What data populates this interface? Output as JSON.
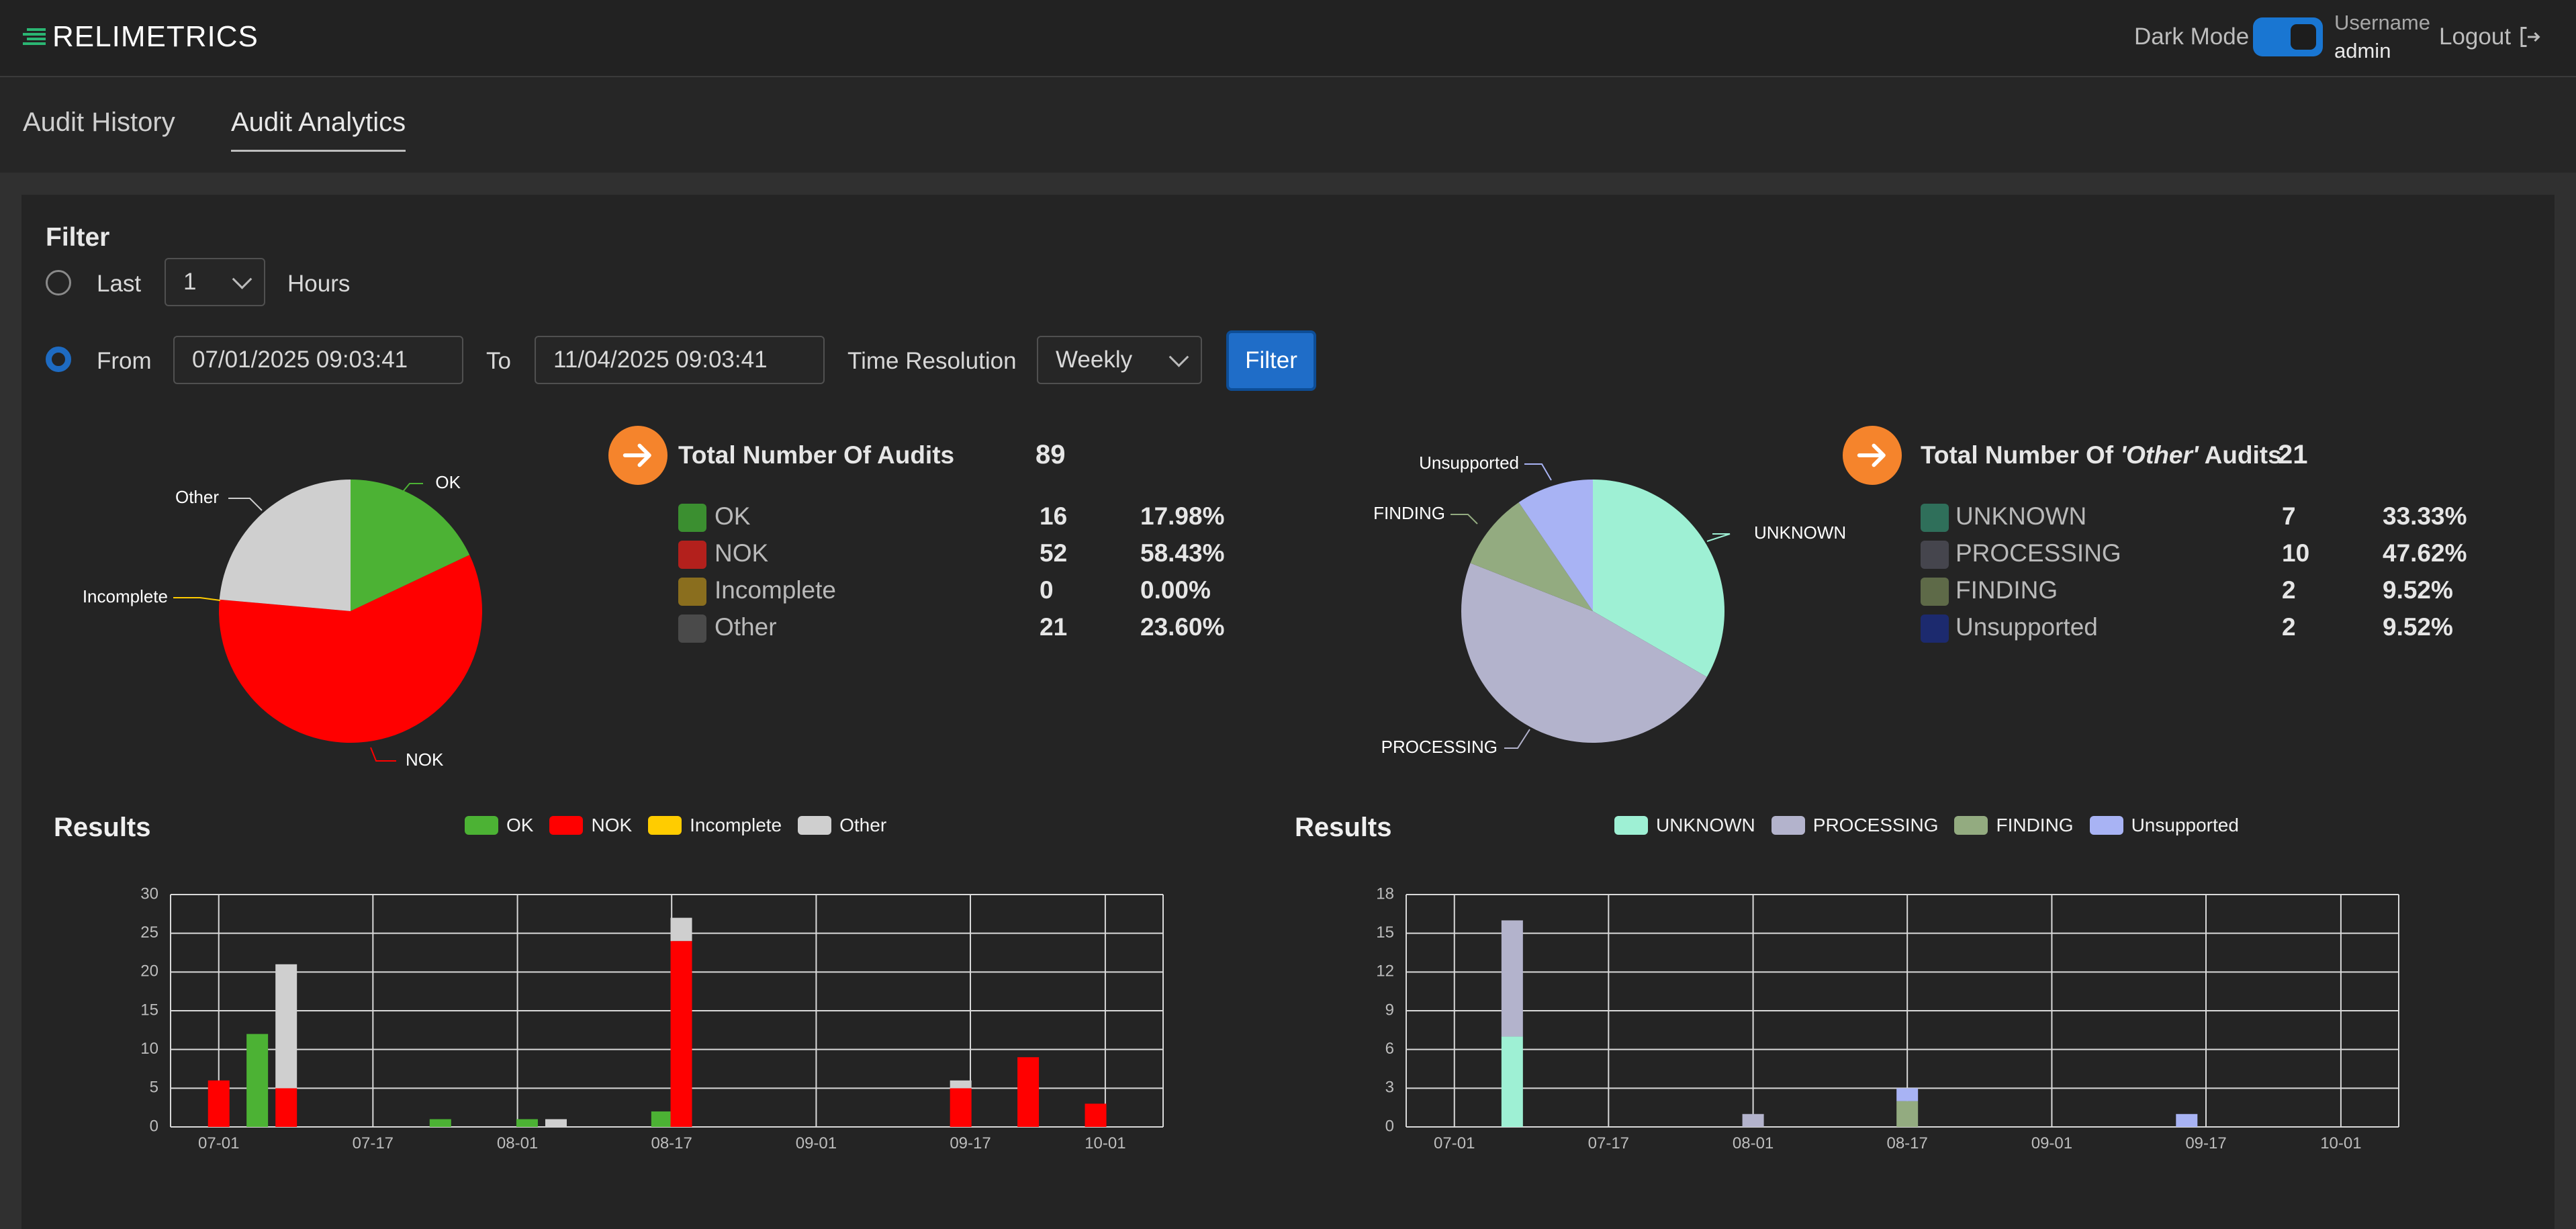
{
  "header": {
    "brand": "RELIMETRICS",
    "dark_mode_label": "Dark Mode",
    "username_label": "Username",
    "username": "admin",
    "logout_label": "Logout"
  },
  "tabs": [
    {
      "label": "Audit History",
      "active": false
    },
    {
      "label": "Audit Analytics",
      "active": true
    }
  ],
  "filter": {
    "title": "Filter",
    "last_label": "Last",
    "last_value": "1",
    "unit_label": "Hours",
    "from_label": "From",
    "from_value": "07/01/2025 09:03:41",
    "to_label": "To",
    "to_value": "11/04/2025 09:03:41",
    "resolution_label": "Time Resolution",
    "resolution_value": "Weekly",
    "button_label": "Filter",
    "selected_mode": "from-to"
  },
  "summary_main": {
    "title": "Total Number Of Audits",
    "total": "89",
    "rows": [
      {
        "label": "OK",
        "count": "16",
        "pct": "17.98%",
        "color": "#3b8f30"
      },
      {
        "label": "NOK",
        "count": "52",
        "pct": "58.43%",
        "color": "#b3201c"
      },
      {
        "label": "Incomplete",
        "count": "0",
        "pct": "0.00%",
        "color": "#8a6e1e"
      },
      {
        "label": "Other",
        "count": "21",
        "pct": "23.60%",
        "color": "#4a4a4a"
      }
    ]
  },
  "summary_other": {
    "title_prefix": "Total Number Of ",
    "title_em": "'Other'",
    "title_suffix": " Audits",
    "total": "21",
    "rows": [
      {
        "label": "UNKNOWN",
        "count": "7",
        "pct": "33.33%",
        "color": "#2f6f5a"
      },
      {
        "label": "PROCESSING",
        "count": "10",
        "pct": "47.62%",
        "color": "#45454d"
      },
      {
        "label": "FINDING",
        "count": "2",
        "pct": "9.52%",
        "color": "#5e6a48"
      },
      {
        "label": "Unsupported",
        "count": "2",
        "pct": "9.52%",
        "color": "#1c2a6e"
      }
    ]
  },
  "results_left": {
    "title": "Results"
  },
  "results_right": {
    "title": "Results"
  },
  "colors": {
    "ok": "#4cb234",
    "nok": "#ff0000",
    "incomplete": "#ffcc00",
    "other": "#cfcfcf",
    "unknown": "#9ef0d4",
    "processing": "#b3b3cc",
    "finding": "#93ab80",
    "unsupported": "#a8b3f4",
    "accent": "#1f6dc8",
    "orange": "#f5842c"
  },
  "chart_data": [
    {
      "type": "pie",
      "labels": [
        "OK",
        "NOK",
        "Incomplete",
        "Other"
      ],
      "values": [
        16,
        52,
        0,
        21
      ],
      "colors": [
        "#4cb234",
        "#ff0000",
        "#ffcc00",
        "#cfcfcf"
      ]
    },
    {
      "type": "pie",
      "labels": [
        "UNKNOWN",
        "PROCESSING",
        "FINDING",
        "Unsupported"
      ],
      "values": [
        7,
        10,
        2,
        2
      ],
      "colors": [
        "#9ef0d4",
        "#b3b3cc",
        "#93ab80",
        "#a8b3f4"
      ]
    },
    {
      "type": "bar",
      "stacked": true,
      "title": "Results",
      "x_ticks": [
        "07-01",
        "07-17",
        "08-01",
        "08-17",
        "09-01",
        "09-17",
        "10-01"
      ],
      "x_tick_days": [
        0,
        16,
        31,
        47,
        62,
        78,
        92
      ],
      "ylim": [
        0,
        30
      ],
      "y_ticks": [
        0,
        5,
        10,
        15,
        20,
        25,
        30
      ],
      "xlim_days": [
        -5,
        98
      ],
      "grid": true,
      "legend": "top",
      "series": [
        {
          "name": "OK",
          "color": "#4cb234",
          "points": [
            {
              "x": 4,
              "y": 12
            },
            {
              "x": 23,
              "y": 1
            },
            {
              "x": 32,
              "y": 1
            },
            {
              "x": 46,
              "y": 2
            }
          ]
        },
        {
          "name": "NOK",
          "color": "#ff0000",
          "points": [
            {
              "x": 0,
              "y": 6
            },
            {
              "x": 7,
              "y": 5
            },
            {
              "x": 48,
              "y": 24
            },
            {
              "x": 77,
              "y": 5
            },
            {
              "x": 84,
              "y": 9
            },
            {
              "x": 91,
              "y": 3
            }
          ]
        },
        {
          "name": "Incomplete",
          "color": "#ffcc00",
          "points": []
        },
        {
          "name": "Other",
          "color": "#cfcfcf",
          "points": [
            {
              "x": 7,
              "y": 16
            },
            {
              "x": 35,
              "y": 1
            },
            {
              "x": 48,
              "y": 3
            },
            {
              "x": 77,
              "y": 1
            }
          ]
        }
      ]
    },
    {
      "type": "bar",
      "stacked": true,
      "title": "Results",
      "x_ticks": [
        "07-01",
        "07-17",
        "08-01",
        "08-17",
        "09-01",
        "09-17",
        "10-01"
      ],
      "x_tick_days": [
        0,
        16,
        31,
        47,
        62,
        78,
        92
      ],
      "ylim": [
        0,
        18
      ],
      "y_ticks": [
        0,
        3,
        6,
        9,
        12,
        15,
        18
      ],
      "xlim_days": [
        -5,
        98
      ],
      "grid": true,
      "legend": "top",
      "series": [
        {
          "name": "UNKNOWN",
          "color": "#9ef0d4",
          "points": [
            {
              "x": 6,
              "y": 7
            }
          ]
        },
        {
          "name": "PROCESSING",
          "color": "#b3b3cc",
          "points": [
            {
              "x": 6,
              "y": 9
            },
            {
              "x": 31,
              "y": 1
            }
          ]
        },
        {
          "name": "FINDING",
          "color": "#93ab80",
          "points": [
            {
              "x": 47,
              "y": 2
            }
          ]
        },
        {
          "name": "Unsupported",
          "color": "#a8b3f4",
          "points": [
            {
              "x": 47,
              "y": 1
            },
            {
              "x": 76,
              "y": 1
            }
          ]
        }
      ]
    }
  ]
}
